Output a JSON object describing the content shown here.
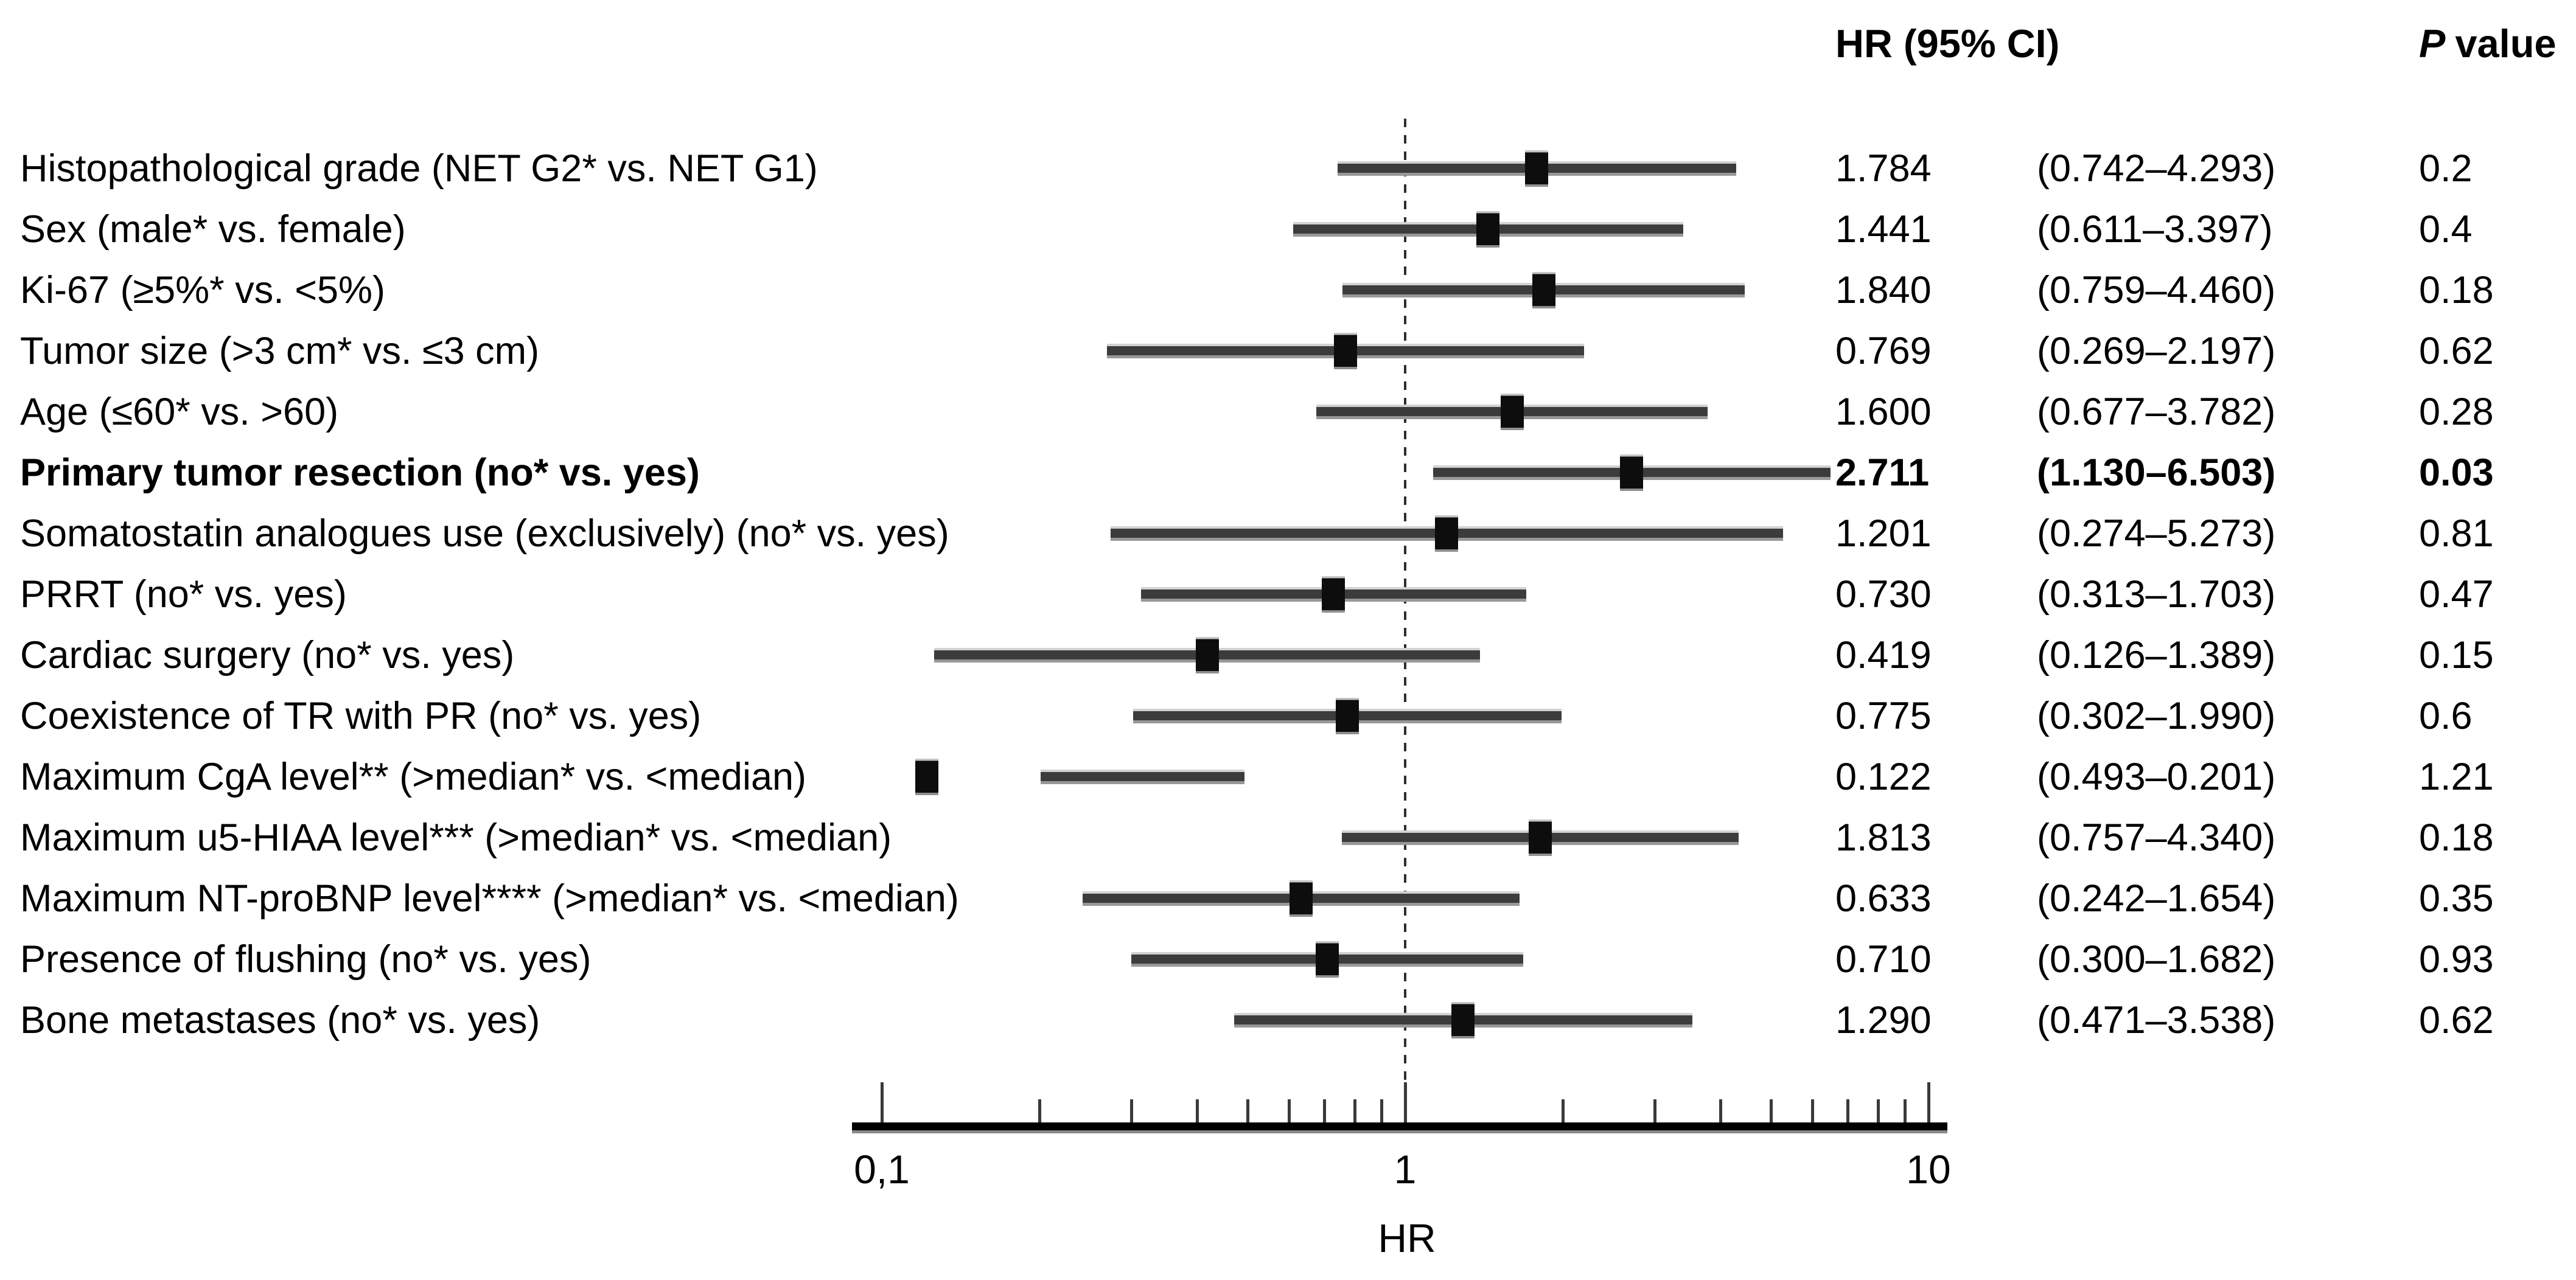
{
  "figure": {
    "background": "#ffffff",
    "colors": {
      "ink": "#000000",
      "bar": "#3c3c3c",
      "marker": "#0d0d0d",
      "reference_line": "#2e2e2e"
    }
  },
  "header": {
    "hr_ci": "HR (95% CI)",
    "p_italic": "P",
    "p_rest": "value"
  },
  "axis": {
    "title": "HR",
    "scale": "log10",
    "reference_value": 1,
    "major_ticks": [
      {
        "value": 0.1,
        "label": "0,1"
      },
      {
        "value": 1,
        "label": "1"
      },
      {
        "value": 10,
        "label": "10"
      }
    ],
    "minor_tick_values": [
      0.2,
      0.3,
      0.4,
      0.5,
      0.6,
      0.7,
      0.8,
      0.9,
      2,
      3,
      4,
      5,
      6,
      7,
      8,
      9
    ]
  },
  "rows": [
    {
      "label": "Histopathological grade (NET G2* vs. NET G1)",
      "hr": "1.784",
      "ci": "(0.742–4.293)",
      "p": "0.2",
      "point": 1.784,
      "lo": 0.742,
      "hi": 4.293,
      "bold": false
    },
    {
      "label": "Sex (male* vs. female)",
      "hr": "1.441",
      "ci": "(0.611–3.397)",
      "p": "0.4",
      "point": 1.441,
      "lo": 0.611,
      "hi": 3.397,
      "bold": false
    },
    {
      "label": "Ki-67 (≥5%* vs. <5%)",
      "hr": "1.840",
      "ci": "(0.759–4.460)",
      "p": "0.18",
      "point": 1.84,
      "lo": 0.759,
      "hi": 4.46,
      "bold": false
    },
    {
      "label": "Tumor size (>3 cm* vs. ≤3 cm)",
      "hr": "0.769",
      "ci": "(0.269–2.197)",
      "p": "0.62",
      "point": 0.769,
      "lo": 0.269,
      "hi": 2.197,
      "bold": false
    },
    {
      "label": "Age (≤60* vs. >60)",
      "hr": "1.600",
      "ci": "(0.677–3.782)",
      "p": "0.28",
      "point": 1.6,
      "lo": 0.677,
      "hi": 3.782,
      "bold": false
    },
    {
      "label": "Primary tumor resection (no* vs. yes)",
      "hr": "2.711",
      "ci": "(1.130–6.503)",
      "p": "0.03",
      "point": 2.711,
      "lo": 1.13,
      "hi": 6.503,
      "bold": true
    },
    {
      "label": "Somatostatin analogues use (exclusively) (no* vs. yes)",
      "hr": "1.201",
      "ci": "(0.274–5.273)",
      "p": "0.81",
      "point": 1.201,
      "lo": 0.274,
      "hi": 5.273,
      "bold": false
    },
    {
      "label": "PRRT (no* vs. yes)",
      "hr": "0.730",
      "ci": "(0.313–1.703)",
      "p": "0.47",
      "point": 0.73,
      "lo": 0.313,
      "hi": 1.703,
      "bold": false
    },
    {
      "label": "Cardiac surgery (no* vs. yes)",
      "hr": "0.419",
      "ci": "(0.126–1.389)",
      "p": "0.15",
      "point": 0.419,
      "lo": 0.126,
      "hi": 1.389,
      "bold": false
    },
    {
      "label": "Coexistence of TR with PR (no* vs. yes)",
      "hr": "0.775",
      "ci": "(0.302–1.990)",
      "p": "0.6",
      "point": 0.775,
      "lo": 0.302,
      "hi": 1.99,
      "bold": false
    },
    {
      "label": "Maximum CgA level** (>median* vs. <median)",
      "hr": "0.122",
      "ci": "(0.493–0.201)",
      "p": "1.21",
      "point": 0.122,
      "lo": 0.201,
      "hi": 0.493,
      "bold": false
    },
    {
      "label": "Maximum u5-HIAA level*** (>median* vs. <median)",
      "hr": "1.813",
      "ci": "(0.757–4.340)",
      "p": "0.18",
      "point": 1.813,
      "lo": 0.757,
      "hi": 4.34,
      "bold": false
    },
    {
      "label": "Maximum NT-proBNP level**** (>median* vs. <median)",
      "hr": "0.633",
      "ci": "(0.242–1.654)",
      "p": "0.35",
      "point": 0.633,
      "lo": 0.242,
      "hi": 1.654,
      "bold": false
    },
    {
      "label": "Presence of flushing (no* vs. yes)",
      "hr": "0.710",
      "ci": "(0.300–1.682)",
      "p": "0.93",
      "point": 0.71,
      "lo": 0.3,
      "hi": 1.682,
      "bold": false
    },
    {
      "label": "Bone metastases (no* vs. yes)",
      "hr": "1.290",
      "ci": "(0.471–3.538)",
      "p": "0.62",
      "point": 1.29,
      "lo": 0.471,
      "hi": 3.538,
      "bold": false
    }
  ],
  "chart_data": {
    "type": "scatter",
    "subtype": "forest_plot",
    "title": "",
    "xlabel": "HR",
    "ylabel": "",
    "x_scale": "log10",
    "x_ticks": [
      0.1,
      1,
      10
    ],
    "x_tick_labels": [
      "0,1",
      "1",
      "10"
    ],
    "x_range": [
      0.09,
      11
    ],
    "reference_line_x": 1,
    "grid": false,
    "legend_position": "none",
    "value_columns": [
      "HR (95% CI)",
      "P value"
    ],
    "categories": [
      "Histopathological grade (NET G2* vs. NET G1)",
      "Sex (male* vs. female)",
      "Ki-67 (≥5%* vs. <5%)",
      "Tumor size (>3 cm* vs. ≤3 cm)",
      "Age (≤60* vs. >60)",
      "Primary tumor resection (no* vs. yes)",
      "Somatostatin analogues use (exclusively) (no* vs. yes)",
      "PRRT (no* vs. yes)",
      "Cardiac surgery (no* vs. yes)",
      "Coexistence of TR with PR (no* vs. yes)",
      "Maximum CgA level** (>median* vs. <median)",
      "Maximum u5-HIAA level*** (>median* vs. <median)",
      "Maximum NT-proBNP level**** (>median* vs. <median)",
      "Presence of flushing (no* vs. yes)",
      "Bone metastases (no* vs. yes)"
    ],
    "series": [
      {
        "name": "HR",
        "values": [
          1.784,
          1.441,
          1.84,
          0.769,
          1.6,
          2.711,
          1.201,
          0.73,
          0.419,
          0.775,
          0.122,
          1.813,
          0.633,
          0.71,
          1.29
        ]
      },
      {
        "name": "CI lower (plotted)",
        "values": [
          0.742,
          0.611,
          0.759,
          0.269,
          0.677,
          1.13,
          0.274,
          0.313,
          0.126,
          0.302,
          0.201,
          0.757,
          0.242,
          0.3,
          0.471
        ]
      },
      {
        "name": "CI upper (plotted)",
        "values": [
          4.293,
          3.397,
          4.46,
          2.197,
          3.782,
          6.503,
          5.273,
          1.703,
          1.389,
          1.99,
          0.493,
          4.34,
          1.654,
          1.682,
          3.538
        ]
      },
      {
        "name": "P value",
        "values": [
          0.2,
          0.4,
          0.18,
          0.62,
          0.28,
          0.03,
          0.81,
          0.47,
          0.15,
          0.6,
          1.21,
          0.18,
          0.35,
          0.93,
          0.62
        ]
      }
    ],
    "ci_text_as_printed": [
      "(0.742–4.293)",
      "(0.611–3.397)",
      "(0.759–4.460)",
      "(0.269–2.197)",
      "(0.677–3.782)",
      "(1.130–6.503)",
      "(0.274–5.273)",
      "(0.313–1.703)",
      "(0.126–1.389)",
      "(0.302–1.990)",
      "(0.493–0.201)",
      "(0.757–4.340)",
      "(0.242–1.654)",
      "(0.300–1.682)",
      "(0.471–3.538)"
    ],
    "bold_rows": [
      "Primary tumor resection (no* vs. yes)"
    ]
  }
}
